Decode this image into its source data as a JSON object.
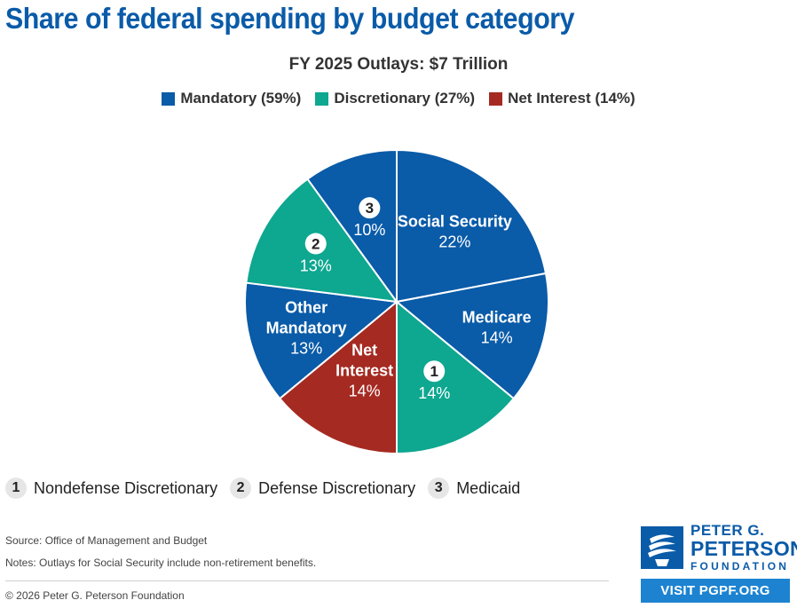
{
  "title": "Share of federal spending by budget category",
  "chart_data": {
    "type": "pie",
    "subtitle": "FY 2025 Outlays: $7 Trillion",
    "legend": [
      {
        "name": "Mandatory",
        "pct_label": "Mandatory (59%)",
        "color": "#0a5ba8"
      },
      {
        "name": "Discretionary",
        "pct_label": "Discretionary (27%)",
        "color": "#0ea790"
      },
      {
        "name": "Net Interest",
        "pct_label": "Net Interest (14%)",
        "color": "#a52a22"
      }
    ],
    "slices": [
      {
        "label_lines": [
          "Social Security"
        ],
        "value": 22,
        "value_label": "22%",
        "group": "Mandatory",
        "color": "#0a5ba8"
      },
      {
        "label_lines": [
          "Medicare"
        ],
        "value": 14,
        "value_label": "14%",
        "group": "Mandatory",
        "color": "#0a5ba8"
      },
      {
        "badge": "1",
        "value": 14,
        "value_label": "14%",
        "group": "Discretionary",
        "color": "#0ea790"
      },
      {
        "label_lines": [
          "Net",
          "Interest"
        ],
        "value": 14,
        "value_label": "14%",
        "group": "Net Interest",
        "color": "#a52a22"
      },
      {
        "label_lines": [
          "Other",
          "Mandatory"
        ],
        "value": 13,
        "value_label": "13%",
        "group": "Mandatory",
        "color": "#0a5ba8"
      },
      {
        "badge": "2",
        "value": 13,
        "value_label": "13%",
        "group": "Discretionary",
        "color": "#0ea790"
      },
      {
        "badge": "3",
        "value": 10,
        "value_label": "10%",
        "group": "Mandatory",
        "color": "#0a5ba8"
      }
    ],
    "footnote_legend": [
      {
        "badge": "1",
        "label": "Nondefense Discretionary"
      },
      {
        "badge": "2",
        "label": "Defense Discretionary"
      },
      {
        "badge": "3",
        "label": "Medicaid"
      }
    ]
  },
  "source": "Source: Office of Management and Budget",
  "notes": "Notes: Outlays for Social Security include non-retirement benefits.",
  "copyright": "© 2026 Peter G. Peterson Foundation",
  "logo": {
    "line1": "PETER G.",
    "line2": "PETERSON",
    "line3": "FOUNDATION"
  },
  "visit_label": "VISIT PGPF.ORG"
}
